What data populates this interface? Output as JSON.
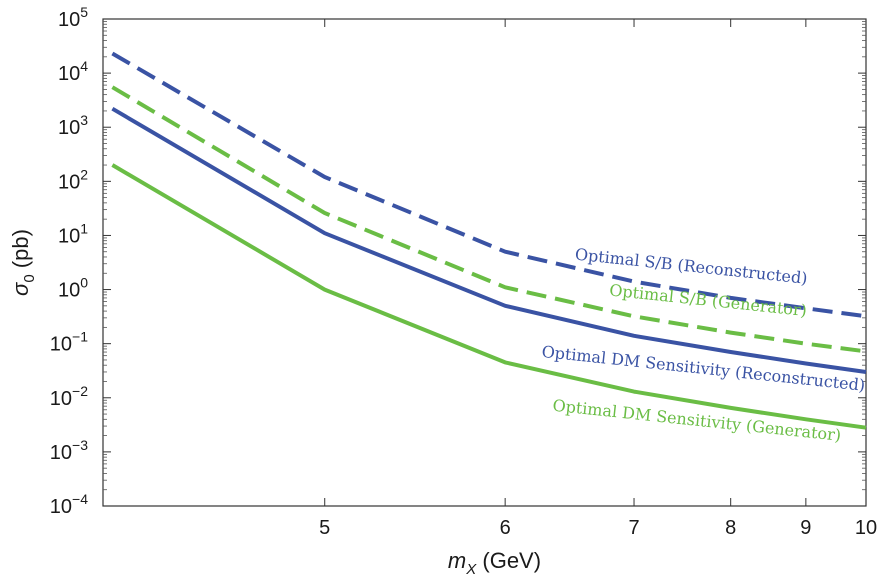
{
  "chart_data": {
    "type": "line",
    "x_scale": "reciprocal",
    "y_scale": "log",
    "xlim": [
      4.15,
      10
    ],
    "ylim": [
      0.0001,
      100000
    ],
    "xlabel_var": "m",
    "xlabel_sub": "X",
    "xlabel_unit": " (GeV)",
    "ylabel_var": "σ",
    "ylabel_sub": "0",
    "ylabel_unit": " (pb)",
    "x_ticks": [
      5,
      6,
      7,
      8,
      9,
      10
    ],
    "x_tick_labels": [
      "5",
      "6",
      "7",
      "8",
      "9",
      "10"
    ],
    "y_ticks": [
      0.0001,
      0.001,
      0.01,
      0.1,
      1,
      10,
      100,
      1000,
      10000,
      100000
    ],
    "y_tick_mantissa": [
      "10",
      "10",
      "10",
      "10",
      "10",
      "10",
      "10",
      "10",
      "10",
      "10"
    ],
    "y_tick_exponents": [
      "−4",
      "−3",
      "−2",
      "−1",
      "0",
      "1",
      "2",
      "3",
      "4",
      "5"
    ],
    "grid": false,
    "series": [
      {
        "name": "Optimal S/B (Reconstructed)",
        "color": "#3a53a4",
        "dash": true,
        "x": [
          4.18,
          5,
          6,
          7,
          8,
          9,
          10
        ],
        "y": [
          23000,
          120,
          5,
          1.4,
          0.7,
          0.45,
          0.32
        ]
      },
      {
        "name": "Optimal S/B (Generator)",
        "color": "#6abd45",
        "dash": true,
        "x": [
          4.18,
          5,
          6,
          7,
          8,
          9,
          10
        ],
        "y": [
          5500,
          26,
          1.1,
          0.32,
          0.16,
          0.1,
          0.072
        ]
      },
      {
        "name": "Optimal DM Sensitivity (Reconstructed)",
        "color": "#3a53a4",
        "dash": false,
        "x": [
          4.18,
          5,
          6,
          7,
          8,
          9,
          10
        ],
        "y": [
          2200,
          11,
          0.5,
          0.14,
          0.07,
          0.043,
          0.03
        ]
      },
      {
        "name": "Optimal DM Sensitivity (Generator)",
        "color": "#6abd45",
        "dash": false,
        "x": [
          4.18,
          5,
          6,
          7,
          8,
          9,
          10
        ],
        "y": [
          200,
          1,
          0.045,
          0.013,
          0.0065,
          0.004,
          0.0028
        ]
      }
    ],
    "annotations": [
      {
        "text": "Optimal S/B (Reconstructed)",
        "series": 0,
        "x": 6.5,
        "y": 3.6,
        "rotate": 6
      },
      {
        "text": "Optimal S/B (Generator)",
        "series": 1,
        "x": 6.78,
        "y": 0.78,
        "rotate": 6
      },
      {
        "text": "Optimal DM Sensitivity (Reconstructed)",
        "series": 2,
        "x": 6.25,
        "y": 0.057,
        "rotate": 6
      },
      {
        "text": "Optimal DM Sensitivity (Generator)",
        "series": 3,
        "x": 6.33,
        "y": 0.0058,
        "rotate": 6
      }
    ]
  }
}
